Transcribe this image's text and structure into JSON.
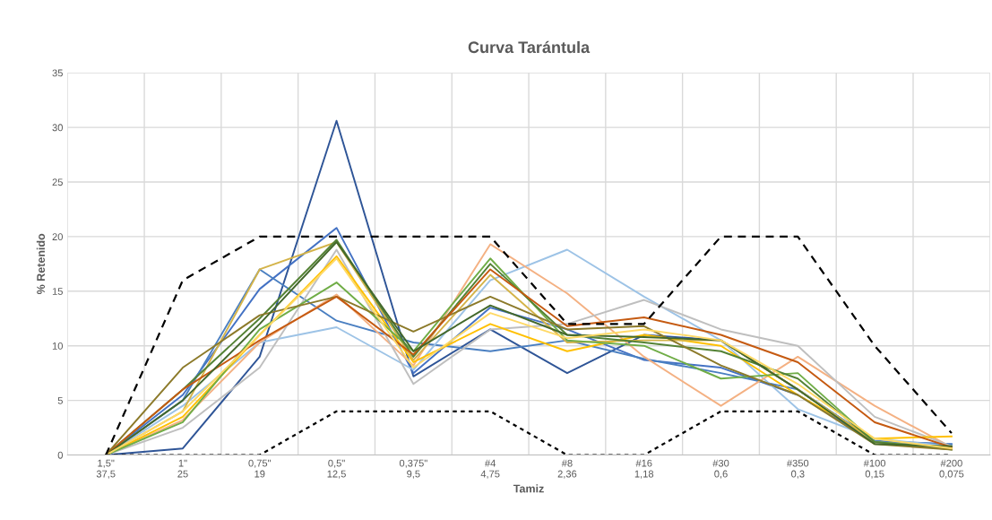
{
  "chart_data": {
    "type": "line",
    "title": "Curva Tarántula",
    "xlabel": "Tamiz",
    "ylabel": "% Retenido",
    "categories": [
      "1,5\"\n37,5",
      "1\"\n25",
      "0,75\"\n19",
      "0,5\"\n12,5",
      "0,375\"\n9,5",
      "#4\n4,75",
      "#8\n2,36",
      "#16\n1,18",
      "#30\n0,6",
      "#350\n0,3",
      "#100\n0,15",
      "#200\n0,075"
    ],
    "ylim": [
      0,
      35
    ],
    "yticks": [
      0,
      5,
      10,
      15,
      20,
      25,
      30,
      35
    ],
    "grid": true,
    "legend": false,
    "marker": "none",
    "series": [
      {
        "color": "#2f5597",
        "values": [
          0,
          0.6,
          9,
          30.6,
          7.2,
          11.5,
          7.5,
          11,
          10.5,
          6,
          1.2,
          0.8
        ]
      },
      {
        "color": "#4472c4",
        "values": [
          0,
          5.5,
          15.2,
          20.8,
          7.5,
          13.5,
          11.5,
          8.7,
          8,
          5.5,
          1.2,
          1
        ]
      },
      {
        "color": "#4a7fc1",
        "values": [
          0,
          5,
          17,
          12.3,
          10.3,
          9.5,
          10.5,
          8.8,
          7.5,
          6,
          1.3,
          1
        ]
      },
      {
        "color": "#9dc3e6",
        "values": [
          0,
          4.5,
          10.3,
          11.7,
          7.8,
          16,
          18.8,
          14.5,
          10.5,
          4.2,
          1.5,
          0.8
        ]
      },
      {
        "color": "#f4b183",
        "values": [
          0,
          3.2,
          10.3,
          14.7,
          8.2,
          19.3,
          14.8,
          9,
          4.5,
          9,
          4.5,
          0.7
        ]
      },
      {
        "color": "#bfbfbf",
        "values": [
          0,
          2.5,
          8,
          18.8,
          6.5,
          11.5,
          12,
          14.2,
          11.5,
          10,
          3.5,
          0.8
        ]
      },
      {
        "color": "#ffc000",
        "values": [
          0,
          3.5,
          11,
          18.2,
          8.5,
          12,
          9.5,
          11,
          10,
          5.5,
          1.5,
          1.7
        ]
      },
      {
        "color": "#d4b44a",
        "values": [
          0,
          4,
          17,
          19.5,
          8.7,
          16.5,
          10.3,
          10.5,
          10.5,
          6,
          1.2,
          0.6
        ]
      },
      {
        "color": "#70ad47",
        "values": [
          0,
          3,
          11.5,
          15.8,
          9.5,
          18,
          10.5,
          10,
          7,
          7.5,
          1.2,
          0.6
        ]
      },
      {
        "color": "#548235",
        "values": [
          0,
          6,
          12.5,
          19.7,
          9,
          17.5,
          11,
          10.3,
          9.5,
          7,
          1.2,
          0.5
        ]
      },
      {
        "color": "#8c7a2a",
        "values": [
          0,
          8,
          12.8,
          14.5,
          11.3,
          14.5,
          11.5,
          11.8,
          8.2,
          5.5,
          1,
          0.5
        ]
      },
      {
        "color": "#c55a11",
        "values": [
          0,
          6,
          10.5,
          14.5,
          9.2,
          17,
          11.8,
          12.6,
          11,
          8.5,
          3,
          0.7
        ]
      },
      {
        "color": "#43682b",
        "values": [
          0,
          5,
          12,
          19.5,
          9.5,
          13.7,
          11,
          10.8,
          10.5,
          6,
          1,
          0.8
        ]
      },
      {
        "color": "#ffd966",
        "values": [
          0,
          4,
          11,
          18,
          8,
          13,
          10.7,
          11.5,
          10.5,
          6.5,
          1.5,
          0.6
        ]
      },
      {
        "color": "#000000",
        "line_style": "dashed",
        "values": [
          0,
          16,
          20,
          20,
          20,
          20,
          12,
          12,
          20,
          20,
          10,
          2
        ]
      },
      {
        "color": "#000000",
        "line_style": "dotted",
        "values": [
          0,
          0,
          0,
          4,
          4,
          4,
          0,
          0,
          4,
          4,
          0,
          0
        ]
      }
    ]
  }
}
